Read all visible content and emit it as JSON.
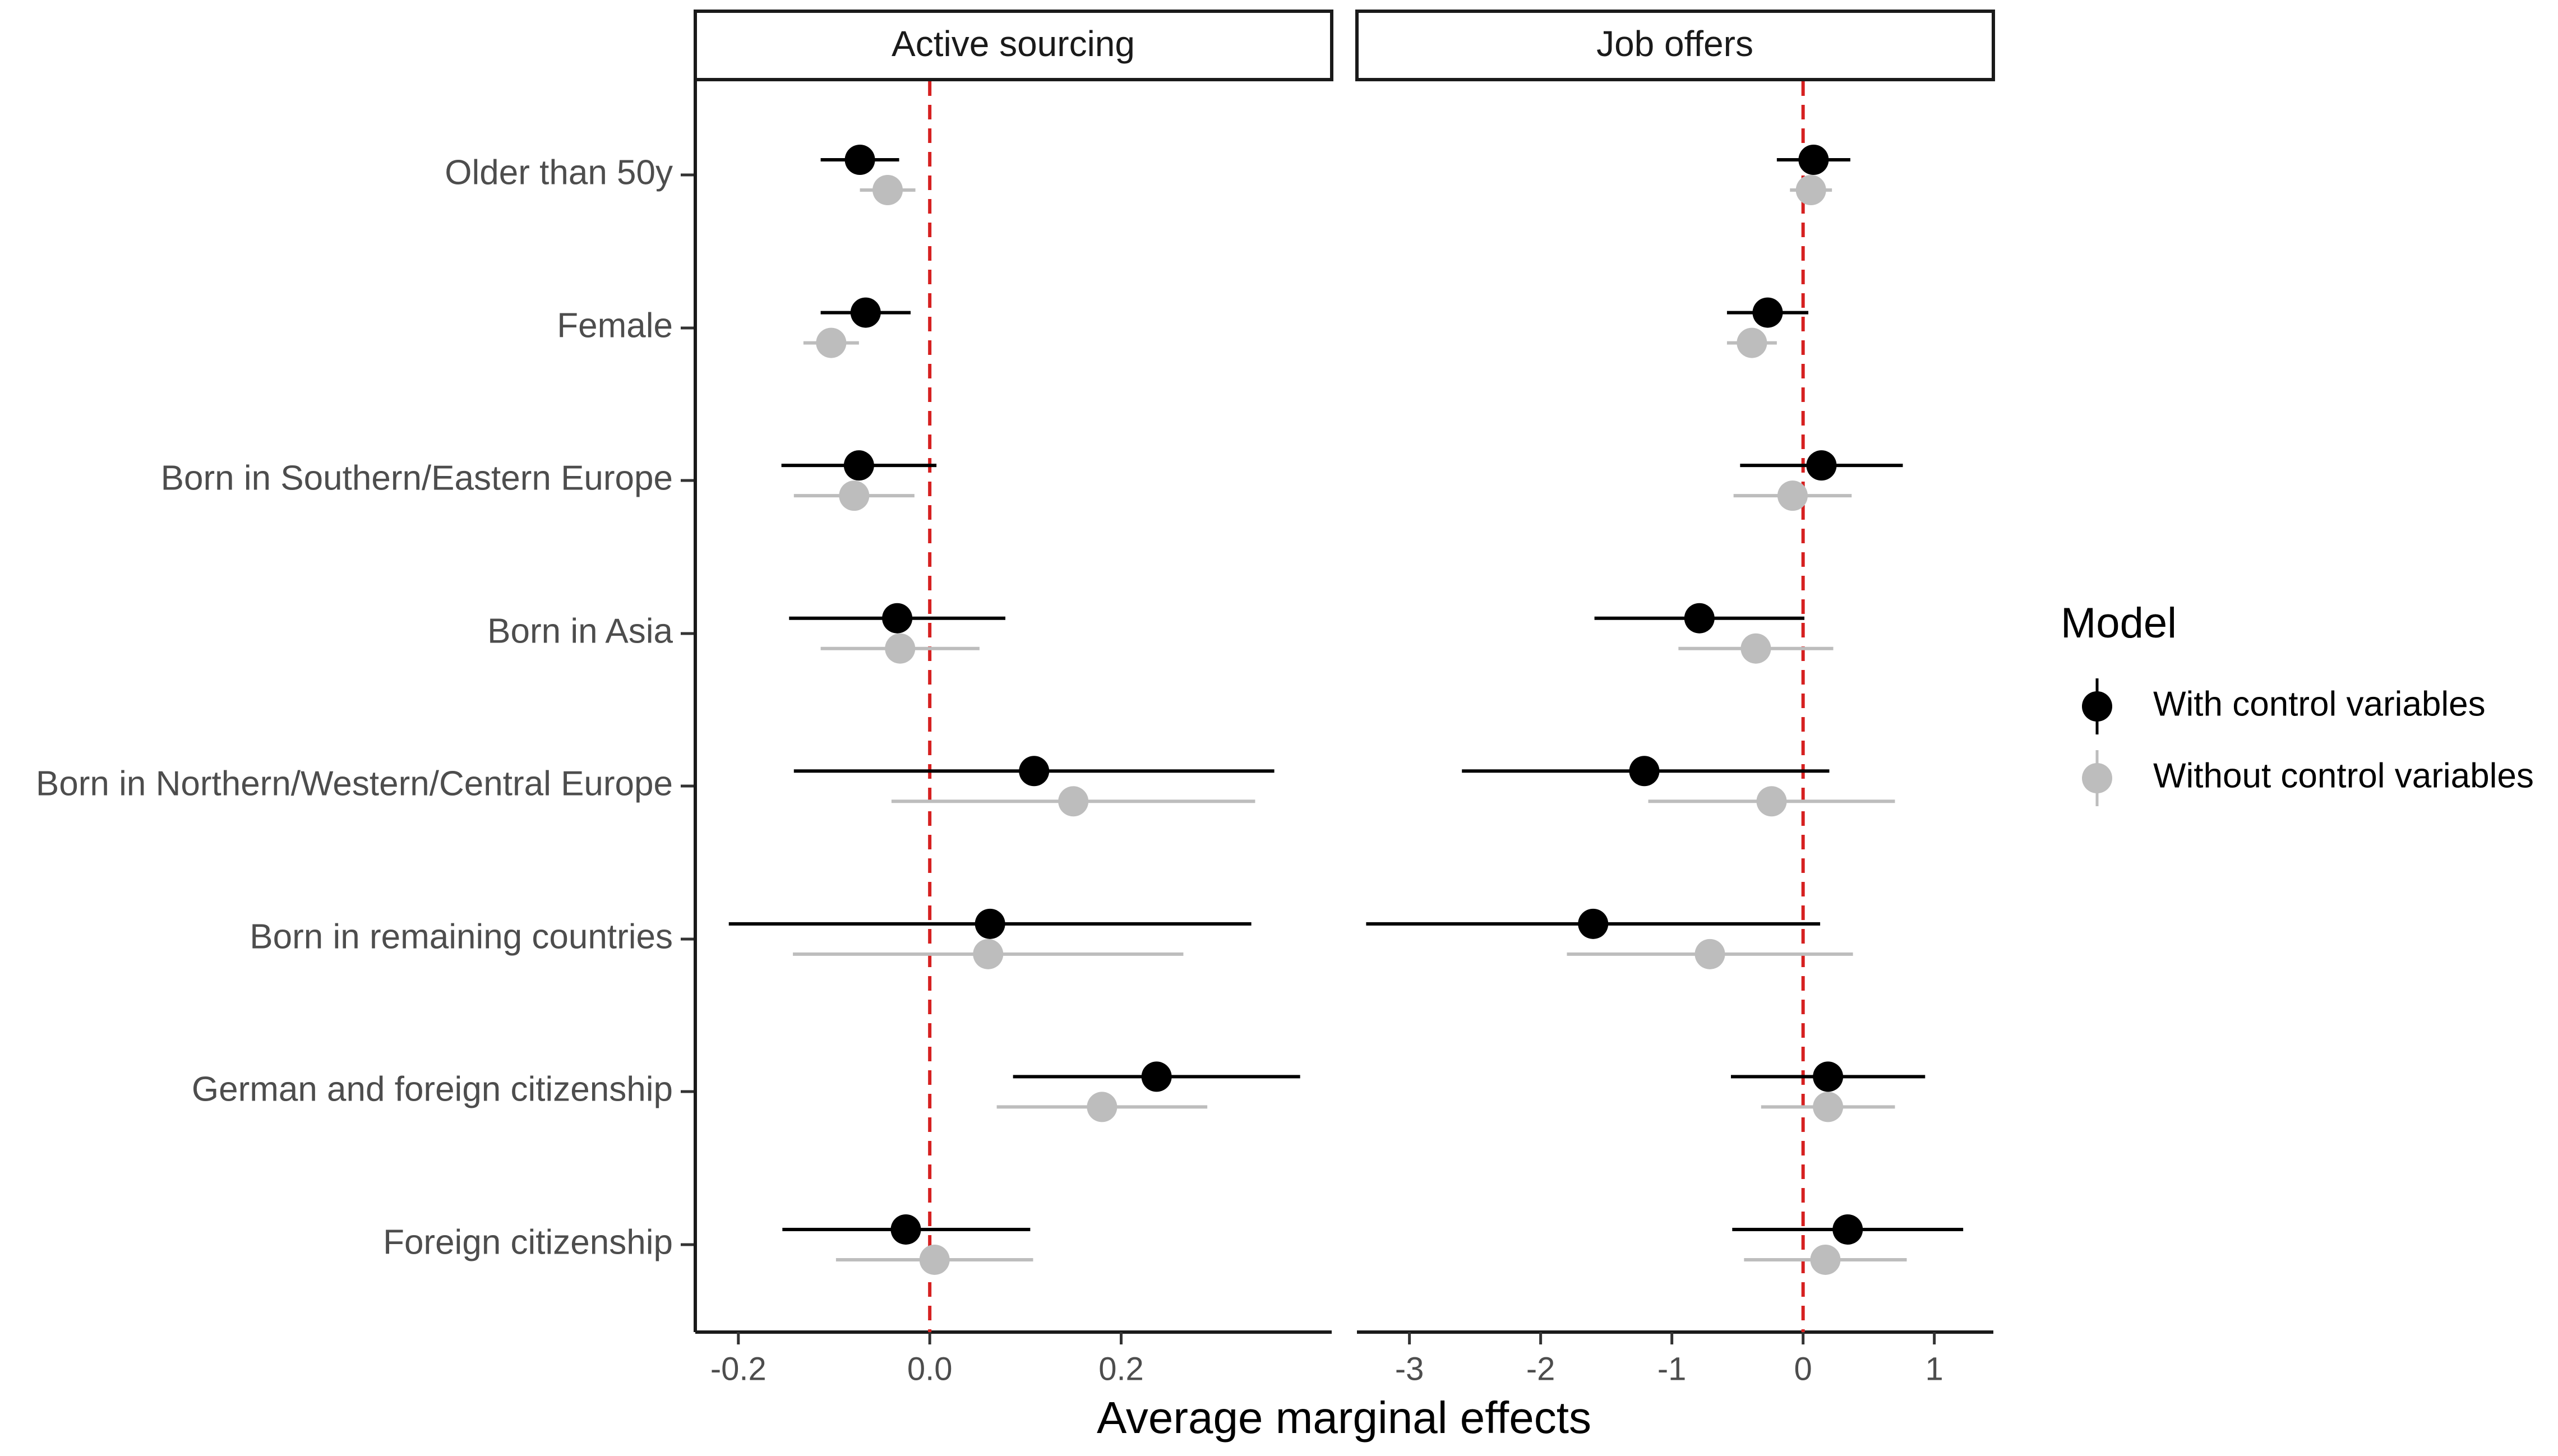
{
  "chart_data": {
    "type": "scatter",
    "subtype": "coefficient-plot-with-error-bars",
    "xlabel": "Average marginal effects",
    "categories": [
      "Older than 50y",
      "Female",
      "Born in Southern/Eastern Europe",
      "Born in Asia",
      "Born in Northern/Western/Central Europe",
      "Born in remaining countries",
      "German and foreign citizenship",
      "Foreign citizenship"
    ],
    "reference_line": {
      "x": 0,
      "style": "dashed",
      "color": "#d62020"
    },
    "legend": {
      "title": "Model",
      "position": "right",
      "entries": [
        "With control variables",
        "Without control variables"
      ]
    },
    "series_colors": {
      "With control variables": "#000000",
      "Without control variables": "#bdbdbd"
    },
    "panels": [
      {
        "title": "Active sourcing",
        "xlim": [
          -0.245,
          0.42
        ],
        "xticks": [
          -0.2,
          0.0,
          0.2
        ],
        "xtick_labels": [
          "-0.2",
          "0.0",
          "0.2"
        ],
        "series": [
          {
            "name": "With control variables",
            "estimates": [
              -0.073,
              -0.067,
              -0.074,
              -0.034,
              0.109,
              0.063,
              0.237,
              -0.025
            ],
            "lower": [
              -0.114,
              -0.114,
              -0.155,
              -0.147,
              -0.142,
              -0.21,
              0.087,
              -0.154
            ],
            "upper": [
              -0.032,
              -0.02,
              0.007,
              0.079,
              0.36,
              0.336,
              0.387,
              0.105
            ]
          },
          {
            "name": "Without control variables",
            "estimates": [
              -0.044,
              -0.103,
              -0.079,
              -0.031,
              0.15,
              0.061,
              0.18,
              0.005
            ],
            "lower": [
              -0.073,
              -0.132,
              -0.142,
              -0.114,
              -0.04,
              -0.143,
              0.07,
              -0.098
            ],
            "upper": [
              -0.015,
              -0.074,
              -0.016,
              0.052,
              0.34,
              0.265,
              0.29,
              0.108
            ]
          }
        ]
      },
      {
        "title": "Job offers",
        "xlim": [
          -3.4,
          1.45
        ],
        "xticks": [
          -3,
          -2,
          -1,
          0,
          1
        ],
        "xtick_labels": [
          "-3",
          "-2",
          "-1",
          "0",
          "1"
        ],
        "series": [
          {
            "name": "With control variables",
            "estimates": [
              0.08,
              -0.27,
              0.14,
              -0.79,
              -1.21,
              -1.6,
              0.19,
              0.34
            ],
            "lower": [
              -0.2,
              -0.58,
              -0.48,
              -1.59,
              -2.6,
              -3.33,
              -0.55,
              -0.54
            ],
            "upper": [
              0.36,
              0.04,
              0.76,
              0.01,
              0.2,
              0.13,
              0.93,
              1.22
            ]
          },
          {
            "name": "Without control variables",
            "estimates": [
              0.06,
              -0.39,
              -0.08,
              -0.36,
              -0.24,
              -0.71,
              0.19,
              0.17
            ],
            "lower": [
              -0.1,
              -0.58,
              -0.53,
              -0.95,
              -1.18,
              -1.8,
              -0.32,
              -0.45
            ],
            "upper": [
              0.22,
              -0.2,
              0.37,
              0.23,
              0.7,
              0.38,
              0.7,
              0.79
            ]
          }
        ]
      }
    ]
  }
}
